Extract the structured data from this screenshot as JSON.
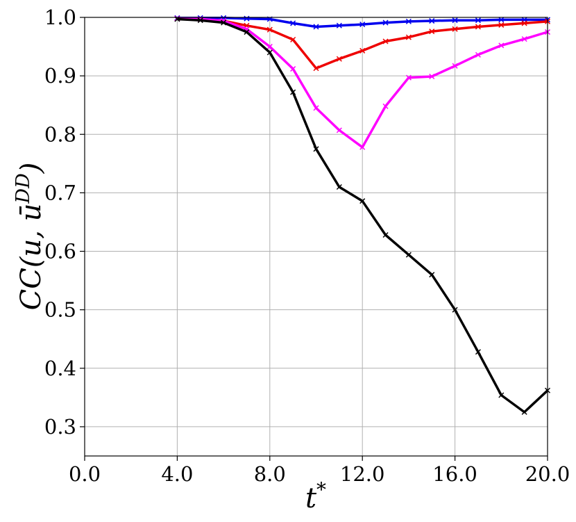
{
  "chart_data": {
    "type": "line",
    "xlabel": "t*",
    "ylabel": "CC(u, ū^DD)",
    "xlim": [
      0,
      20
    ],
    "ylim": [
      0.25,
      1.0
    ],
    "xticks": [
      "0.0",
      "4.0",
      "8.0",
      "12.0",
      "16.0",
      "20.0"
    ],
    "yticks": [
      "0.3",
      "0.4",
      "0.5",
      "0.6",
      "0.7",
      "0.8",
      "0.9",
      "1.0"
    ],
    "grid": true,
    "marker": "x",
    "series": [
      {
        "color": "#0000ee",
        "x": [
          4,
          5,
          6,
          7,
          8,
          9,
          10,
          11,
          12,
          13,
          14,
          15,
          16,
          17,
          18,
          19,
          20
        ],
        "y": [
          0.999,
          0.999,
          0.999,
          0.998,
          0.997,
          0.99,
          0.984,
          0.986,
          0.988,
          0.991,
          0.993,
          0.994,
          0.995,
          0.995,
          0.996,
          0.996,
          0.996
        ]
      },
      {
        "color": "#ee0000",
        "x": [
          4,
          5,
          6,
          7,
          8,
          9,
          10,
          11,
          12,
          13,
          14,
          15,
          16,
          17,
          18,
          19,
          20
        ],
        "y": [
          0.998,
          0.997,
          0.994,
          0.986,
          0.979,
          0.962,
          0.913,
          0.929,
          0.943,
          0.959,
          0.966,
          0.976,
          0.98,
          0.984,
          0.987,
          0.99,
          0.993
        ]
      },
      {
        "color": "#ff00ff",
        "x": [
          4,
          5,
          6,
          7,
          8,
          9,
          10,
          11,
          12,
          13,
          14,
          15,
          16,
          17,
          18,
          19,
          20
        ],
        "y": [
          0.998,
          0.997,
          0.994,
          0.98,
          0.95,
          0.912,
          0.845,
          0.807,
          0.778,
          0.848,
          0.897,
          0.899,
          0.917,
          0.936,
          0.952,
          0.963,
          0.975
        ]
      },
      {
        "color": "#000000",
        "x": [
          4,
          5,
          6,
          7,
          8,
          9,
          10,
          11,
          12,
          13,
          14,
          15,
          16,
          17,
          18,
          19,
          20
        ],
        "y": [
          0.997,
          0.995,
          0.991,
          0.975,
          0.94,
          0.872,
          0.775,
          0.71,
          0.686,
          0.628,
          0.594,
          0.56,
          0.5,
          0.428,
          0.354,
          0.325,
          0.362
        ]
      }
    ]
  }
}
